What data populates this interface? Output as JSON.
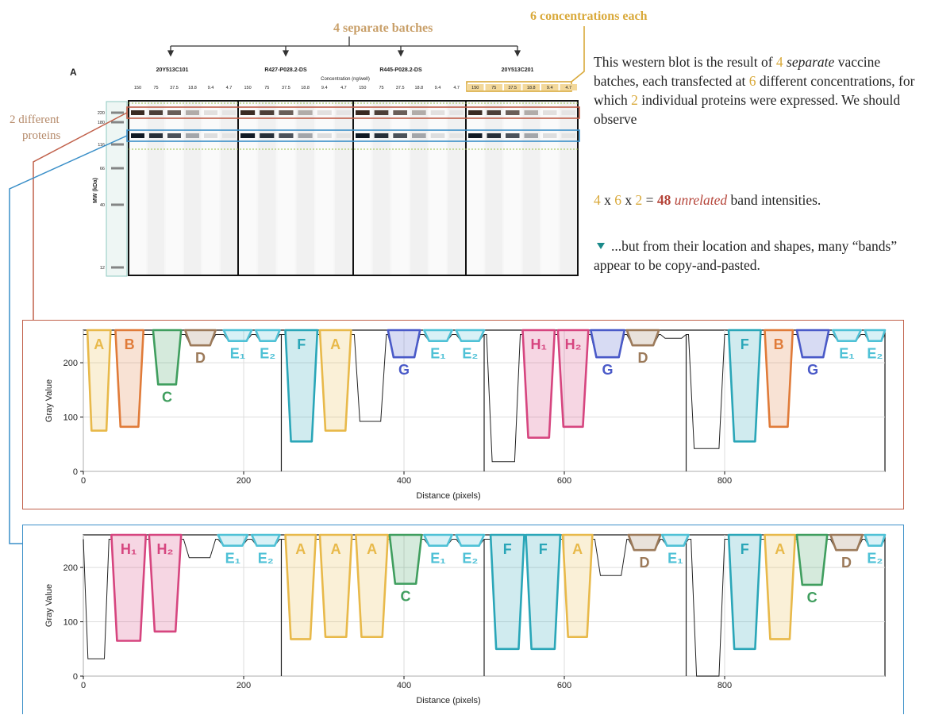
{
  "header": {
    "batches_label": "4 separate batches",
    "concentrations_label": "6 concentrations each",
    "proteins_label_line1": "2 different",
    "proteins_label_line2": "proteins"
  },
  "blot": {
    "panel_letter": "A",
    "lane_groups": [
      "20Y513C101",
      "R427-P028.2-DS",
      "R445-P028.2-DS",
      "20Y513C201"
    ],
    "concentration_title": "Concentration (ng/well)",
    "concentrations": [
      "150",
      "75",
      "37.5",
      "18.8",
      "9.4",
      "4.7"
    ],
    "mw_axis_label": "MW (kDa)",
    "mw_markers": [
      "220",
      "180",
      "116",
      "66",
      "40",
      "12"
    ]
  },
  "narrative": {
    "p1": [
      "This western blot is the result of ",
      "4",
      " ",
      "separate",
      " vaccine batches, each transfected at ",
      "6",
      " different concentrations, for which ",
      "2",
      " individual proteins were expressed.  We should observe"
    ],
    "equation": [
      "4",
      " x ",
      "6",
      " x ",
      "2",
      " = ",
      "48",
      " ",
      "unrelated",
      " band intensities."
    ],
    "triangle_icon": "triangle-down",
    "p2": "...but from their location and shapes, many “bands” appear to be copy-and-pasted."
  },
  "colors": {
    "A": "#e8b94a",
    "B": "#e07b39",
    "C": "#3f9e5e",
    "D": "#9c7a5a",
    "E": "#4fc1d6",
    "F": "#2aa6b8",
    "G": "#4a5ac8",
    "H": "#d6457f",
    "red_frame": "#c0604a",
    "blue_frame": "#3a8fc8",
    "gold": "#d9a93a"
  },
  "chart_data": [
    {
      "type": "line",
      "panel": "upper",
      "xlabel": "Distance (pixels)",
      "ylabel": "Gray Value",
      "xlim": [
        0,
        1000
      ],
      "ylim": [
        0,
        260
      ],
      "xticks": [
        0,
        200,
        400,
        600,
        800
      ],
      "yticks": [
        0,
        100,
        200
      ],
      "grid": true,
      "bands": [
        {
          "label": "A",
          "x": [
            5,
            34
          ],
          "min": 75
        },
        {
          "label": "B",
          "x": [
            40,
            75
          ],
          "min": 82
        },
        {
          "label": "C",
          "x": [
            87,
            122
          ],
          "min": 160
        },
        {
          "label": "D",
          "x": [
            127,
            165
          ],
          "min": 232
        },
        {
          "label": "E₁",
          "x": [
            175,
            210
          ],
          "min": 240
        },
        {
          "label": "E₂",
          "x": [
            215,
            245
          ],
          "min": 240
        },
        {
          "label": "F",
          "x": [
            252,
            292
          ],
          "min": 55
        },
        {
          "label": "A",
          "x": [
            295,
            334
          ],
          "min": 75
        },
        {
          "label": "G",
          "x": [
            380,
            420
          ],
          "min": 210
        },
        {
          "label": "E₁",
          "x": [
            425,
            460
          ],
          "min": 240
        },
        {
          "label": "E₂",
          "x": [
            465,
            500
          ],
          "min": 240
        },
        {
          "label": "H₁",
          "x": [
            548,
            588
          ],
          "min": 62
        },
        {
          "label": "H₂",
          "x": [
            592,
            630
          ],
          "min": 82
        },
        {
          "label": "G",
          "x": [
            633,
            675
          ],
          "min": 210
        },
        {
          "label": "D",
          "x": [
            678,
            718
          ],
          "min": 232
        },
        {
          "label": "F",
          "x": [
            805,
            845
          ],
          "min": 55
        },
        {
          "label": "B",
          "x": [
            850,
            885
          ],
          "min": 82
        },
        {
          "label": "G",
          "x": [
            890,
            930
          ],
          "min": 210
        },
        {
          "label": "E₁",
          "x": [
            935,
            970
          ],
          "min": 240
        },
        {
          "label": "E₂",
          "x": [
            975,
            1000
          ],
          "min": 240
        }
      ],
      "unlabeled_troughs": [
        {
          "x": [
            338,
            378
          ],
          "min": 92
        },
        {
          "x": [
            503,
            545
          ],
          "min": 18
        },
        {
          "x": [
            720,
            752
          ],
          "min": 245
        },
        {
          "x": [
            755,
            800
          ],
          "min": 42
        }
      ]
    },
    {
      "type": "line",
      "panel": "lower",
      "xlabel": "Distance (pixels)",
      "ylabel": "Gray Value",
      "xlim": [
        0,
        1000
      ],
      "ylim": [
        0,
        260
      ],
      "xticks": [
        0,
        200,
        400,
        600,
        800
      ],
      "yticks": [
        0,
        100,
        200
      ],
      "grid": true,
      "bands": [
        {
          "label": "H₁",
          "x": [
            35,
            78
          ],
          "min": 65
        },
        {
          "label": "H₂",
          "x": [
            82,
            122
          ],
          "min": 82
        },
        {
          "label": "E₁",
          "x": [
            168,
            205
          ],
          "min": 240
        },
        {
          "label": "E₂",
          "x": [
            210,
            245
          ],
          "min": 240
        },
        {
          "label": "A",
          "x": [
            252,
            290
          ],
          "min": 68
        },
        {
          "label": "A",
          "x": [
            295,
            335
          ],
          "min": 72
        },
        {
          "label": "A",
          "x": [
            340,
            380
          ],
          "min": 72
        },
        {
          "label": "C",
          "x": [
            382,
            422
          ],
          "min": 170
        },
        {
          "label": "E₁",
          "x": [
            425,
            460
          ],
          "min": 240
        },
        {
          "label": "E₂",
          "x": [
            465,
            500
          ],
          "min": 240
        },
        {
          "label": "F",
          "x": [
            508,
            550
          ],
          "min": 50
        },
        {
          "label": "F",
          "x": [
            552,
            595
          ],
          "min": 50
        },
        {
          "label": "A",
          "x": [
            598,
            635
          ],
          "min": 72
        },
        {
          "label": "D",
          "x": [
            680,
            720
          ],
          "min": 232
        },
        {
          "label": "E₁",
          "x": [
            722,
            755
          ],
          "min": 240
        },
        {
          "label": "F",
          "x": [
            805,
            845
          ],
          "min": 50
        },
        {
          "label": "A",
          "x": [
            850,
            888
          ],
          "min": 68
        },
        {
          "label": "C",
          "x": [
            890,
            928
          ],
          "min": 168
        },
        {
          "label": "D",
          "x": [
            932,
            972
          ],
          "min": 232
        },
        {
          "label": "E₂",
          "x": [
            975,
            1000
          ],
          "min": 240
        }
      ],
      "unlabeled_troughs": [
        {
          "x": [
            0,
            32
          ],
          "min": 32
        },
        {
          "x": [
            125,
            165
          ],
          "min": 218
        },
        {
          "x": [
            638,
            678
          ],
          "min": 185
        },
        {
          "x": [
            758,
            800
          ],
          "min": 0
        }
      ]
    }
  ]
}
